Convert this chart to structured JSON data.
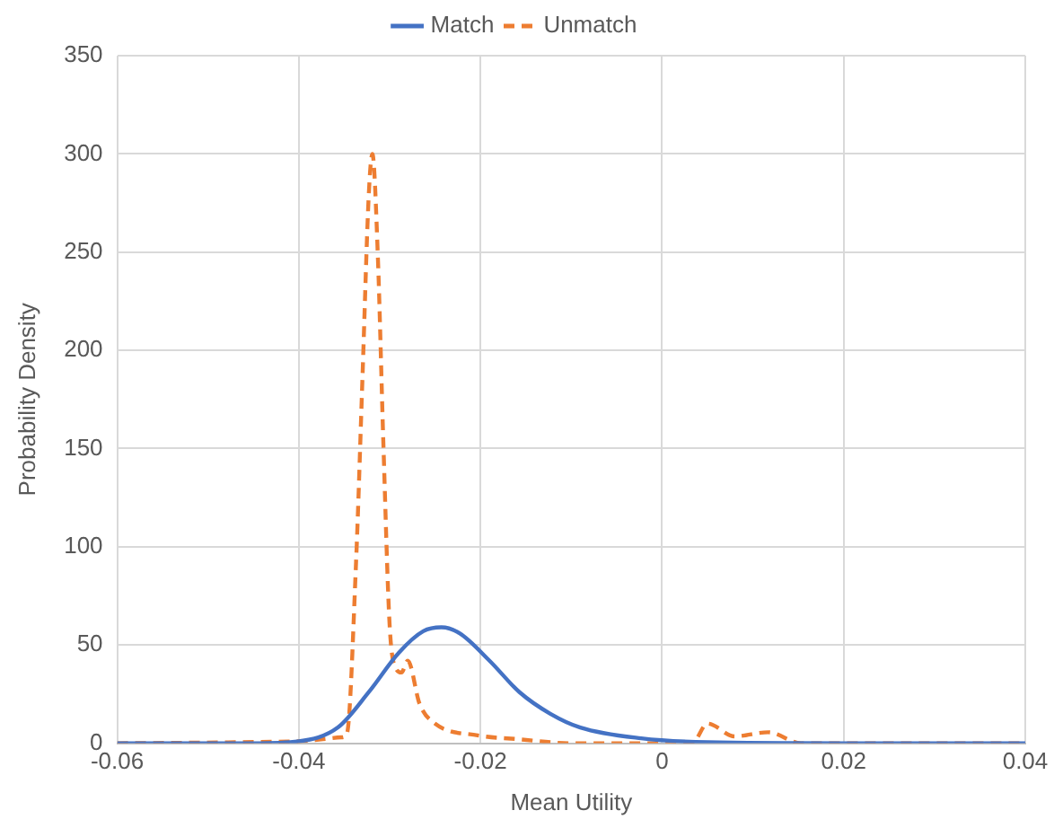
{
  "chart_data": {
    "type": "line",
    "xlabel": "Mean Utility",
    "ylabel": "Probability Density",
    "xlim": [
      -0.06,
      0.04
    ],
    "xticks": [
      -0.06,
      -0.04,
      -0.02,
      0,
      0.02,
      0.04
    ],
    "ylim": [
      0,
      350
    ],
    "yticks": [
      0,
      50,
      100,
      150,
      200,
      250,
      300,
      350
    ],
    "grid": true,
    "legend": "top",
    "marker": "none",
    "series": [
      {
        "name": "Match",
        "color": "#4472c4",
        "line_style": "solid",
        "x": [
          -0.06,
          -0.045,
          -0.04,
          -0.0357,
          -0.0323,
          -0.029,
          -0.0263,
          -0.0243,
          -0.0223,
          -0.019,
          -0.0157,
          -0.0123,
          -0.009,
          -0.0023,
          0.005,
          0.02,
          0.04
        ],
        "values": [
          0,
          0,
          1,
          8,
          26,
          46,
          57,
          59,
          56,
          42,
          26,
          15,
          8,
          2.5,
          0.5,
          0,
          0
        ]
      },
      {
        "name": "Unmatch",
        "color": "#ed7d31",
        "line_style": "dashed",
        "x": [
          -0.06,
          -0.04,
          -0.0353,
          -0.0347,
          -0.0337,
          -0.033,
          -0.0323,
          -0.0319,
          -0.0313,
          -0.0307,
          -0.03,
          -0.0293,
          -0.0287,
          -0.028,
          -0.0267,
          -0.025,
          -0.0203,
          -0.0157,
          -0.01,
          0.0033,
          0.005,
          0.008,
          0.0117,
          0.0153,
          0.04
        ],
        "values": [
          0,
          1,
          3,
          5,
          92,
          185,
          279,
          300,
          248,
          154,
          60,
          38,
          36,
          42,
          20,
          10,
          4,
          2,
          0,
          0,
          10,
          3.5,
          5.6,
          0,
          0
        ]
      }
    ]
  }
}
